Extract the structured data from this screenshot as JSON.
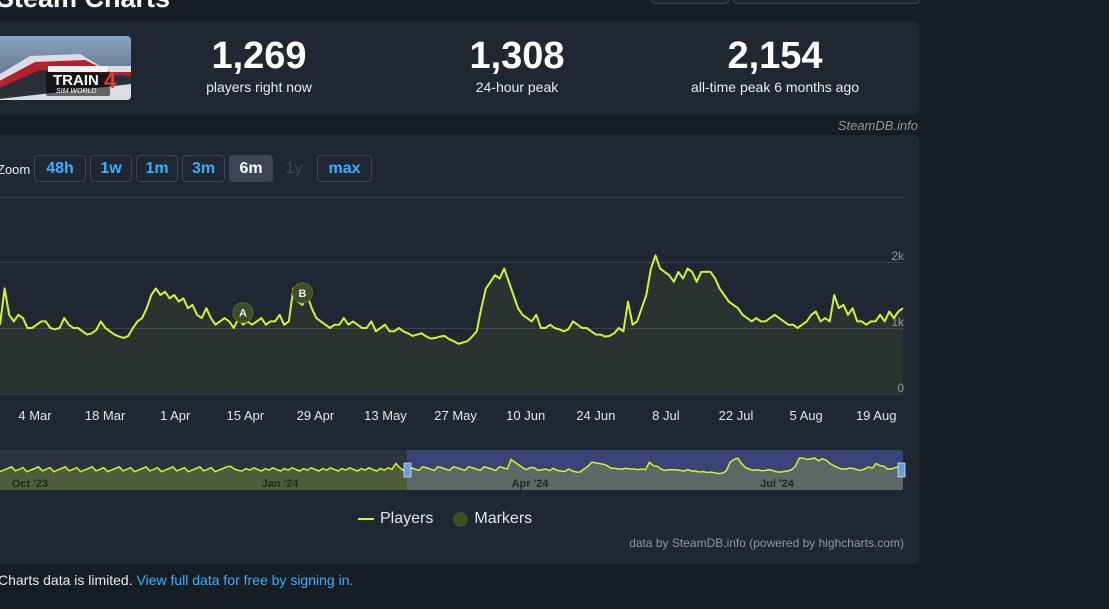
{
  "page": {
    "title": "Steam Charts"
  },
  "game": {
    "logo_text": "TRAIN",
    "logo_number": "4",
    "logo_sub": "SIM WORLD"
  },
  "stats": [
    {
      "value": "1,269",
      "label": "players right now"
    },
    {
      "value": "1,308",
      "label": "24-hour peak"
    },
    {
      "value": "2,154",
      "label": "all-time peak 6 months ago"
    }
  ],
  "credit": "SteamDB.info",
  "zoom": {
    "label": "Zoom",
    "buttons": [
      {
        "label": "48h",
        "state": "normal"
      },
      {
        "label": "1w",
        "state": "normal"
      },
      {
        "label": "1m",
        "state": "normal"
      },
      {
        "label": "3m",
        "state": "normal"
      },
      {
        "label": "6m",
        "state": "active"
      },
      {
        "label": "1y",
        "state": "disabled"
      },
      {
        "label": "max",
        "state": "normal"
      }
    ]
  },
  "chart_data": {
    "type": "line",
    "y_ticks": [
      "2k",
      "1k",
      "0"
    ],
    "ylim": [
      0,
      2000
    ],
    "x_ticks": [
      "4 Mar",
      "18 Mar",
      "1 Apr",
      "15 Apr",
      "29 Apr",
      "13 May",
      "27 May",
      "10 Jun",
      "24 Jun",
      "8 Jul",
      "22 Jul",
      "5 Aug",
      "19 Aug"
    ],
    "series": [
      {
        "name": "Players",
        "color": "#d6f22c",
        "values": [
          1050,
          1600,
          1200,
          1100,
          1200,
          1150,
          1000,
          1000,
          1050,
          1100,
          1100,
          1000,
          980,
          1000,
          1150,
          1050,
          1000,
          1000,
          950,
          900,
          920,
          970,
          1100,
          1000,
          950,
          900,
          870,
          850,
          880,
          1000,
          1100,
          1150,
          1300,
          1500,
          1600,
          1500,
          1550,
          1450,
          1500,
          1400,
          1450,
          1300,
          1350,
          1200,
          1150,
          1300,
          1150,
          1050,
          1100,
          1150,
          1100,
          1000,
          1150,
          1050,
          1100,
          1050,
          1100,
          1150,
          1050,
          1100,
          1100,
          1200,
          1050,
          1100,
          1600,
          1400,
          1350,
          1500,
          1300,
          1150,
          1100,
          1050,
          1000,
          1050,
          1050,
          1150,
          1050,
          1100,
          1050,
          1000,
          1000,
          1100,
          950,
          1000,
          1050,
          950,
          950,
          1000,
          950,
          920,
          880,
          900,
          920,
          870,
          840,
          850,
          870,
          880,
          830,
          800,
          760,
          780,
          800,
          870,
          950,
          1300,
          1600,
          1700,
          1800,
          1750,
          1900,
          1700,
          1500,
          1300,
          1200,
          1150,
          1100,
          1200,
          1000,
          1000,
          1050,
          1000,
          980,
          950,
          980,
          1100,
          1050,
          1000,
          1000,
          950,
          900,
          900,
          870,
          880,
          920,
          1000,
          950,
          1400,
          1050,
          1100,
          1300,
          1500,
          1900,
          2100,
          1900,
          1850,
          1800,
          1700,
          1850,
          1750,
          1900,
          1850,
          1700,
          1850,
          1850,
          1850,
          1750,
          1600,
          1500,
          1400,
          1350,
          1300,
          1200,
          1150,
          1100,
          1150,
          1100,
          1100,
          1150,
          1200,
          1150,
          1100,
          1050,
          1050,
          1000,
          1050,
          1100,
          1200,
          1250,
          1100,
          1150,
          1100,
          1500,
          1300,
          1350,
          1200,
          1300,
          1100,
          1100,
          1050,
          1100,
          1100,
          1200,
          1100,
          1250,
          1150,
          1250,
          1300
        ]
      }
    ],
    "markers": [
      {
        "label": "A",
        "index": 53
      },
      {
        "label": "B",
        "index": 66
      }
    ],
    "navigator_ticks": [
      "Oct '23",
      "Jan '24",
      "Apr '24",
      "Jul '24"
    ],
    "legend": [
      "Players",
      "Markers"
    ]
  },
  "powered_by": "data by SteamDB.info (powered by highcharts.com)",
  "notice": {
    "text": "Charts data is limited. ",
    "link": "View full data for free by signing in."
  }
}
